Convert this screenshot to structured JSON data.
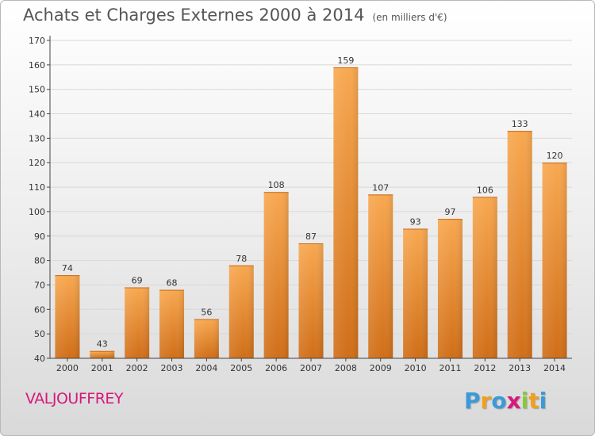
{
  "title": "Achats et Charges Externes 2000 à 2014",
  "subtitle": "(en milliers d'€)",
  "place": "VALJOUFFREY",
  "logo": {
    "letters": [
      "P",
      "r",
      "o",
      "x",
      "i",
      "t",
      "i"
    ],
    "colors": [
      "#3a9ad9",
      "#f0a020",
      "#3a9ad9",
      "#d6197a",
      "#8cc63f",
      "#f0a020",
      "#3a9ad9"
    ]
  },
  "colors": {
    "bar_light": "#f8a850",
    "bar_dark": "#d06e18",
    "axis": "#444444",
    "grid": "#d8d8d8",
    "text": "#333333",
    "place": "#d6197a"
  },
  "chart_data": {
    "type": "bar",
    "title": "Achats et Charges Externes 2000 à 2014",
    "subtitle": "(en milliers d'€)",
    "categories": [
      "2000",
      "2001",
      "2002",
      "2003",
      "2004",
      "2005",
      "2006",
      "2007",
      "2008",
      "2009",
      "2010",
      "2011",
      "2012",
      "2013",
      "2014"
    ],
    "values": [
      74,
      43,
      69,
      68,
      56,
      78,
      108,
      87,
      159,
      107,
      93,
      97,
      106,
      133,
      120
    ],
    "ylim": [
      40,
      170
    ],
    "yticks": [
      40,
      50,
      60,
      70,
      80,
      90,
      100,
      110,
      120,
      130,
      140,
      150,
      160,
      170
    ],
    "grid": true,
    "data_labels": true
  }
}
